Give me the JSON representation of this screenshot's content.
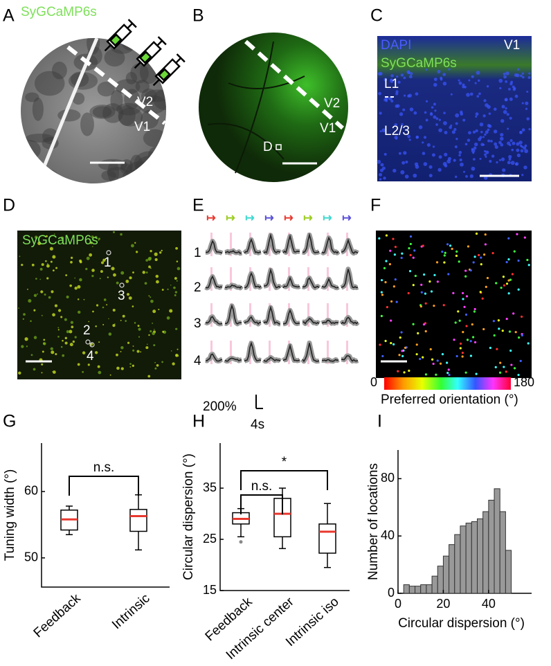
{
  "panels": [
    "A",
    "B",
    "C",
    "D",
    "E",
    "F",
    "G",
    "H",
    "I"
  ],
  "panel_a": {
    "label": "SyGCaMP6s",
    "areas": [
      "V2",
      "V1"
    ]
  },
  "panel_b": {
    "areas": [
      "V2",
      "V1"
    ],
    "inset": "D"
  },
  "panel_c": {
    "stains": [
      "DAPI",
      "SyGCaMP6s"
    ],
    "area": "V1",
    "layers": [
      "L1",
      "L2/3"
    ]
  },
  "panel_d": {
    "label": "SyGCaMP6s",
    "rois": [
      "1",
      "3",
      "2",
      "4"
    ]
  },
  "panel_e": {
    "rows": [
      "1",
      "2",
      "3",
      "4"
    ],
    "scale_y": "200%",
    "scale_x": "4s"
  },
  "panel_f": {
    "colorbar_min": "0",
    "colorbar_max": "180",
    "colorbar_label": "Preferred orientation (°)"
  },
  "chart_data": [
    {
      "type": "box",
      "ylabel": "Tuning width (°)",
      "categories": [
        "Feedback",
        "Intrinsic"
      ],
      "whisker_low": [
        53.5,
        51.2
      ],
      "q1": [
        54.2,
        54
      ],
      "median": [
        55.8,
        56.3
      ],
      "q3": [
        57.2,
        57.3
      ],
      "whisker_high": [
        57.8,
        59.5
      ],
      "outliers": [
        null,
        null
      ],
      "ylim": [
        45.6,
        67.3
      ],
      "yticks": [
        50,
        60
      ],
      "annotations": [
        "n.s."
      ],
      "box_color": "#000000",
      "median_color": "#e8382e"
    },
    {
      "type": "box",
      "ylabel": "Circular dispersion (°)",
      "categories": [
        "Feedback",
        "Intrinsic center",
        "Intrinsic iso"
      ],
      "whisker_low": [
        25.5,
        23.2,
        19.5
      ],
      "q1": [
        28,
        25.5,
        22.3
      ],
      "median": [
        29,
        30,
        26.5
      ],
      "q3": [
        30.2,
        33,
        28
      ],
      "whisker_high": [
        31,
        35,
        32
      ],
      "outliers": [
        24.5,
        null,
        null
      ],
      "ylim": [
        15,
        43.8
      ],
      "yticks": [
        15,
        25,
        35
      ],
      "annotations": [
        "n.s.",
        "*"
      ],
      "box_color": "#000000",
      "median_color": "#e8382e"
    },
    {
      "type": "histogram",
      "xlabel": "Circular dispersion (°)",
      "ylabel": "Number of locations",
      "bins": [
        2.5,
        5,
        7.5,
        10,
        12.5,
        15,
        17.5,
        20,
        22.5,
        25,
        27.5,
        30,
        32.5,
        35,
        37.5,
        40,
        42.5,
        45,
        47.5,
        50
      ],
      "counts": [
        6,
        5,
        5,
        6,
        6,
        12,
        19,
        26,
        34,
        41,
        47,
        49,
        50,
        52,
        57,
        65,
        73,
        57,
        30
      ],
      "xlim": [
        0,
        59
      ],
      "ylim": [
        0,
        100
      ],
      "xticks": [
        0,
        20,
        40
      ],
      "yticks": [
        0,
        40,
        80
      ],
      "color": "#999999"
    }
  ]
}
